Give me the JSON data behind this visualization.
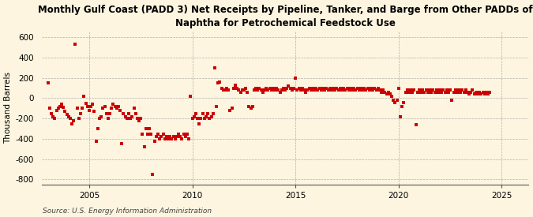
{
  "title": "Monthly Gulf Coast (PADD 3) Net Receipts by Pipeline, Tanker, and Barge from Other PADDs of\nNaphtha for Petrochemical Feedstock Use",
  "ylabel": "Thousand Barrels",
  "source": "Source: U.S. Energy Information Administration",
  "background_color": "#fdf5e0",
  "marker_color": "#cc0000",
  "xlim": [
    2002.7,
    2026.3
  ],
  "ylim": [
    -850,
    660
  ],
  "yticks": [
    -800,
    -600,
    -400,
    -200,
    0,
    200,
    400,
    600
  ],
  "xticks": [
    2005,
    2010,
    2015,
    2020,
    2025
  ],
  "data": [
    [
      2003.0,
      150
    ],
    [
      2003.083,
      -100
    ],
    [
      2003.167,
      -150
    ],
    [
      2003.25,
      -180
    ],
    [
      2003.333,
      -200
    ],
    [
      2003.417,
      -120
    ],
    [
      2003.5,
      -100
    ],
    [
      2003.583,
      -80
    ],
    [
      2003.667,
      -60
    ],
    [
      2003.75,
      -90
    ],
    [
      2003.833,
      -130
    ],
    [
      2003.917,
      -160
    ],
    [
      2004.0,
      -180
    ],
    [
      2004.083,
      -200
    ],
    [
      2004.167,
      -250
    ],
    [
      2004.25,
      -220
    ],
    [
      2004.333,
      530
    ],
    [
      2004.417,
      -100
    ],
    [
      2004.5,
      -200
    ],
    [
      2004.583,
      -150
    ],
    [
      2004.667,
      -100
    ],
    [
      2004.75,
      20
    ],
    [
      2004.833,
      -50
    ],
    [
      2004.917,
      -80
    ],
    [
      2005.0,
      -120
    ],
    [
      2005.083,
      -80
    ],
    [
      2005.167,
      -60
    ],
    [
      2005.25,
      -130
    ],
    [
      2005.333,
      -420
    ],
    [
      2005.417,
      -300
    ],
    [
      2005.5,
      -200
    ],
    [
      2005.583,
      -180
    ],
    [
      2005.667,
      -100
    ],
    [
      2005.75,
      -80
    ],
    [
      2005.833,
      -150
    ],
    [
      2005.917,
      -200
    ],
    [
      2006.0,
      -150
    ],
    [
      2006.083,
      -100
    ],
    [
      2006.167,
      -60
    ],
    [
      2006.25,
      -80
    ],
    [
      2006.333,
      -100
    ],
    [
      2006.417,
      -80
    ],
    [
      2006.5,
      -120
    ],
    [
      2006.583,
      -450
    ],
    [
      2006.667,
      -150
    ],
    [
      2006.75,
      -180
    ],
    [
      2006.833,
      -200
    ],
    [
      2006.917,
      -150
    ],
    [
      2007.0,
      -200
    ],
    [
      2007.083,
      -180
    ],
    [
      2007.167,
      -100
    ],
    [
      2007.25,
      -150
    ],
    [
      2007.333,
      -200
    ],
    [
      2007.417,
      -220
    ],
    [
      2007.5,
      -200
    ],
    [
      2007.583,
      -350
    ],
    [
      2007.667,
      -480
    ],
    [
      2007.75,
      -300
    ],
    [
      2007.833,
      -350
    ],
    [
      2007.917,
      -300
    ],
    [
      2008.0,
      -350
    ],
    [
      2008.083,
      -750
    ],
    [
      2008.167,
      -420
    ],
    [
      2008.25,
      -380
    ],
    [
      2008.333,
      -350
    ],
    [
      2008.417,
      -400
    ],
    [
      2008.5,
      -380
    ],
    [
      2008.583,
      -350
    ],
    [
      2008.667,
      -400
    ],
    [
      2008.75,
      -380
    ],
    [
      2008.833,
      -400
    ],
    [
      2008.917,
      -380
    ],
    [
      2009.0,
      -400
    ],
    [
      2009.083,
      -380
    ],
    [
      2009.167,
      -400
    ],
    [
      2009.25,
      -380
    ],
    [
      2009.333,
      -350
    ],
    [
      2009.417,
      -380
    ],
    [
      2009.5,
      -400
    ],
    [
      2009.583,
      -350
    ],
    [
      2009.667,
      -380
    ],
    [
      2009.75,
      -350
    ],
    [
      2009.833,
      -400
    ],
    [
      2009.917,
      20
    ],
    [
      2010.0,
      -200
    ],
    [
      2010.083,
      -180
    ],
    [
      2010.167,
      -150
    ],
    [
      2010.25,
      -200
    ],
    [
      2010.333,
      -250
    ],
    [
      2010.417,
      -200
    ],
    [
      2010.5,
      -150
    ],
    [
      2010.583,
      -200
    ],
    [
      2010.667,
      -180
    ],
    [
      2010.75,
      -150
    ],
    [
      2010.833,
      -200
    ],
    [
      2010.917,
      -180
    ],
    [
      2011.0,
      -150
    ],
    [
      2011.083,
      300
    ],
    [
      2011.167,
      -80
    ],
    [
      2011.25,
      150
    ],
    [
      2011.333,
      160
    ],
    [
      2011.417,
      100
    ],
    [
      2011.5,
      80
    ],
    [
      2011.583,
      80
    ],
    [
      2011.667,
      100
    ],
    [
      2011.75,
      80
    ],
    [
      2011.833,
      -120
    ],
    [
      2011.917,
      -100
    ],
    [
      2012.0,
      100
    ],
    [
      2012.083,
      130
    ],
    [
      2012.167,
      100
    ],
    [
      2012.25,
      80
    ],
    [
      2012.333,
      60
    ],
    [
      2012.417,
      80
    ],
    [
      2012.5,
      80
    ],
    [
      2012.583,
      100
    ],
    [
      2012.667,
      60
    ],
    [
      2012.75,
      -80
    ],
    [
      2012.833,
      -100
    ],
    [
      2012.917,
      -80
    ],
    [
      2013.0,
      80
    ],
    [
      2013.083,
      100
    ],
    [
      2013.167,
      80
    ],
    [
      2013.25,
      100
    ],
    [
      2013.333,
      80
    ],
    [
      2013.417,
      60
    ],
    [
      2013.5,
      80
    ],
    [
      2013.583,
      100
    ],
    [
      2013.667,
      80
    ],
    [
      2013.75,
      100
    ],
    [
      2013.833,
      80
    ],
    [
      2013.917,
      100
    ],
    [
      2014.0,
      80
    ],
    [
      2014.083,
      100
    ],
    [
      2014.167,
      80
    ],
    [
      2014.25,
      60
    ],
    [
      2014.333,
      80
    ],
    [
      2014.417,
      100
    ],
    [
      2014.5,
      80
    ],
    [
      2014.583,
      100
    ],
    [
      2014.667,
      120
    ],
    [
      2014.75,
      100
    ],
    [
      2014.833,
      80
    ],
    [
      2014.917,
      100
    ],
    [
      2015.0,
      200
    ],
    [
      2015.083,
      80
    ],
    [
      2015.167,
      100
    ],
    [
      2015.25,
      80
    ],
    [
      2015.333,
      100
    ],
    [
      2015.417,
      80
    ],
    [
      2015.5,
      60
    ],
    [
      2015.583,
      80
    ],
    [
      2015.667,
      100
    ],
    [
      2015.75,
      80
    ],
    [
      2015.833,
      100
    ],
    [
      2015.917,
      80
    ],
    [
      2016.0,
      100
    ],
    [
      2016.083,
      80
    ],
    [
      2016.167,
      100
    ],
    [
      2016.25,
      80
    ],
    [
      2016.333,
      100
    ],
    [
      2016.417,
      80
    ],
    [
      2016.5,
      100
    ],
    [
      2016.583,
      80
    ],
    [
      2016.667,
      100
    ],
    [
      2016.75,
      80
    ],
    [
      2016.833,
      100
    ],
    [
      2016.917,
      80
    ],
    [
      2017.0,
      100
    ],
    [
      2017.083,
      80
    ],
    [
      2017.167,
      100
    ],
    [
      2017.25,
      80
    ],
    [
      2017.333,
      100
    ],
    [
      2017.417,
      80
    ],
    [
      2017.5,
      100
    ],
    [
      2017.583,
      80
    ],
    [
      2017.667,
      100
    ],
    [
      2017.75,
      80
    ],
    [
      2017.833,
      100
    ],
    [
      2017.917,
      80
    ],
    [
      2018.0,
      100
    ],
    [
      2018.083,
      80
    ],
    [
      2018.167,
      100
    ],
    [
      2018.25,
      80
    ],
    [
      2018.333,
      100
    ],
    [
      2018.417,
      80
    ],
    [
      2018.5,
      100
    ],
    [
      2018.583,
      80
    ],
    [
      2018.667,
      100
    ],
    [
      2018.75,
      80
    ],
    [
      2018.833,
      100
    ],
    [
      2018.917,
      80
    ],
    [
      2019.0,
      100
    ],
    [
      2019.083,
      80
    ],
    [
      2019.167,
      60
    ],
    [
      2019.25,
      80
    ],
    [
      2019.333,
      60
    ],
    [
      2019.417,
      40
    ],
    [
      2019.5,
      60
    ],
    [
      2019.583,
      40
    ],
    [
      2019.667,
      20
    ],
    [
      2019.75,
      -20
    ],
    [
      2019.833,
      -40
    ],
    [
      2019.917,
      -20
    ],
    [
      2020.0,
      100
    ],
    [
      2020.083,
      -180
    ],
    [
      2020.167,
      -80
    ],
    [
      2020.25,
      -40
    ],
    [
      2020.333,
      60
    ],
    [
      2020.417,
      80
    ],
    [
      2020.5,
      60
    ],
    [
      2020.583,
      80
    ],
    [
      2020.667,
      60
    ],
    [
      2020.75,
      80
    ],
    [
      2020.833,
      -260
    ],
    [
      2020.917,
      60
    ],
    [
      2021.0,
      80
    ],
    [
      2021.083,
      60
    ],
    [
      2021.167,
      80
    ],
    [
      2021.25,
      60
    ],
    [
      2021.333,
      80
    ],
    [
      2021.417,
      60
    ],
    [
      2021.5,
      80
    ],
    [
      2021.583,
      60
    ],
    [
      2021.667,
      80
    ],
    [
      2021.75,
      60
    ],
    [
      2021.833,
      80
    ],
    [
      2021.917,
      60
    ],
    [
      2022.0,
      80
    ],
    [
      2022.083,
      60
    ],
    [
      2022.167,
      80
    ],
    [
      2022.25,
      60
    ],
    [
      2022.333,
      80
    ],
    [
      2022.417,
      60
    ],
    [
      2022.5,
      80
    ],
    [
      2022.583,
      -20
    ],
    [
      2022.667,
      60
    ],
    [
      2022.75,
      80
    ],
    [
      2022.833,
      60
    ],
    [
      2022.917,
      80
    ],
    [
      2023.0,
      60
    ],
    [
      2023.083,
      80
    ],
    [
      2023.167,
      60
    ],
    [
      2023.25,
      80
    ],
    [
      2023.333,
      60
    ],
    [
      2023.417,
      40
    ],
    [
      2023.5,
      60
    ],
    [
      2023.583,
      80
    ],
    [
      2023.667,
      40
    ],
    [
      2023.75,
      60
    ],
    [
      2023.833,
      40
    ],
    [
      2023.917,
      60
    ],
    [
      2024.0,
      40
    ],
    [
      2024.083,
      60
    ],
    [
      2024.167,
      40
    ],
    [
      2024.25,
      60
    ],
    [
      2024.333,
      40
    ],
    [
      2024.417,
      60
    ]
  ]
}
